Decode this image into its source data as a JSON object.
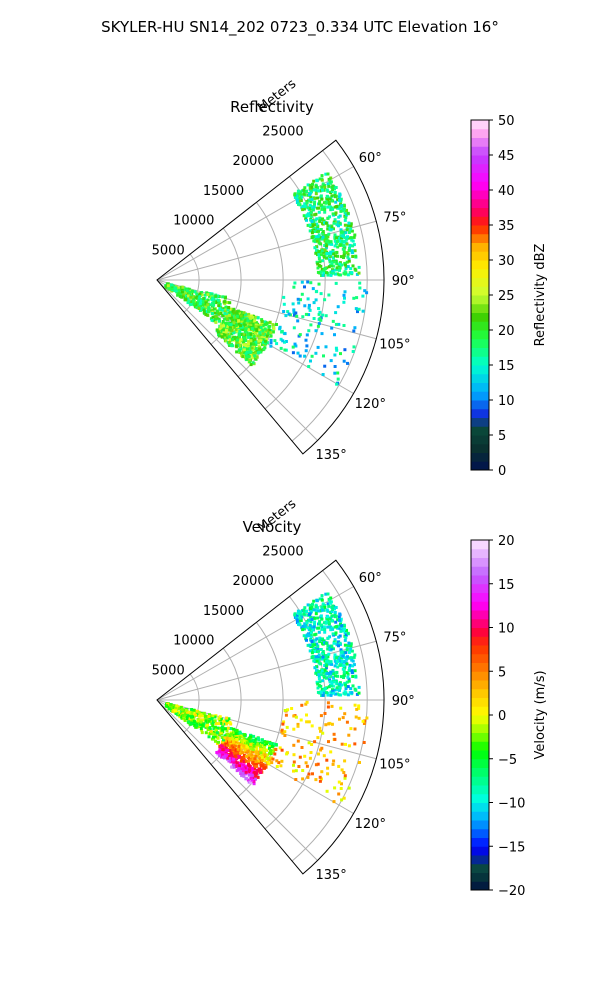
{
  "figure_title": "SKYLER-HU  SN14_202  0723_0.334 UTC Elevation 16°",
  "chart_data": [
    {
      "type": "polar-sector",
      "title": "Reflectivity",
      "radial_axis_label": "Meters",
      "radial_ticks": [
        "5000",
        "10000",
        "15000",
        "20000",
        "25000"
      ],
      "angular_ticks": [
        "60°",
        "75°",
        "90°",
        "105°",
        "120°",
        "135°"
      ],
      "angular_range_deg": [
        52,
        140
      ],
      "radial_range_m": [
        0,
        27000
      ],
      "colorbar": {
        "label": "Reflectivity dBZ",
        "range": [
          0,
          50
        ],
        "ticks": [
          "0",
          "5",
          "10",
          "15",
          "20",
          "25",
          "30",
          "35",
          "40",
          "45",
          "50"
        ]
      },
      "echoes": [
        {
          "region": "north band",
          "azimuth_deg": [
            57,
            88
          ],
          "range_m": [
            19000,
            24000
          ],
          "value_approx": 18
        },
        {
          "region": "central cluster",
          "azimuth_deg": [
            110,
            132
          ],
          "range_m": [
            9000,
            15000
          ],
          "value_approx": 21
        },
        {
          "region": "near-radar streak",
          "azimuth_deg": [
            103,
            126
          ],
          "range_m": [
            1000,
            9000
          ],
          "value_approx": 20
        },
        {
          "region": "scattered east",
          "azimuth_deg": [
            90,
            120
          ],
          "range_m": [
            15000,
            25000
          ],
          "value_approx": 14
        }
      ]
    },
    {
      "type": "polar-sector",
      "title": "Velocity",
      "radial_axis_label": "Meters",
      "radial_ticks": [
        "5000",
        "10000",
        "15000",
        "20000",
        "25000"
      ],
      "angular_ticks": [
        "60°",
        "75°",
        "90°",
        "105°",
        "120°",
        "135°"
      ],
      "angular_range_deg": [
        52,
        140
      ],
      "radial_range_m": [
        0,
        27000
      ],
      "colorbar": {
        "label": "Velocity (m/s)",
        "range": [
          -20,
          20
        ],
        "ticks": [
          "−20",
          "−15",
          "−10",
          "−5",
          "0",
          "5",
          "10",
          "15",
          "20"
        ]
      },
      "echoes": [
        {
          "region": "north band",
          "azimuth_deg": [
            57,
            88
          ],
          "range_m": [
            19000,
            24000
          ],
          "value_approx": -9
        },
        {
          "region": "central cluster",
          "azimuth_deg": [
            110,
            132
          ],
          "range_m": [
            9000,
            15000
          ],
          "value_approx": 5
        },
        {
          "region": "near-radar streak",
          "azimuth_deg": [
            103,
            126
          ],
          "range_m": [
            1000,
            9000
          ],
          "value_approx": -2
        },
        {
          "region": "scattered east",
          "azimuth_deg": [
            90,
            120
          ],
          "range_m": [
            15000,
            25000
          ],
          "value_approx": 3
        }
      ]
    }
  ]
}
